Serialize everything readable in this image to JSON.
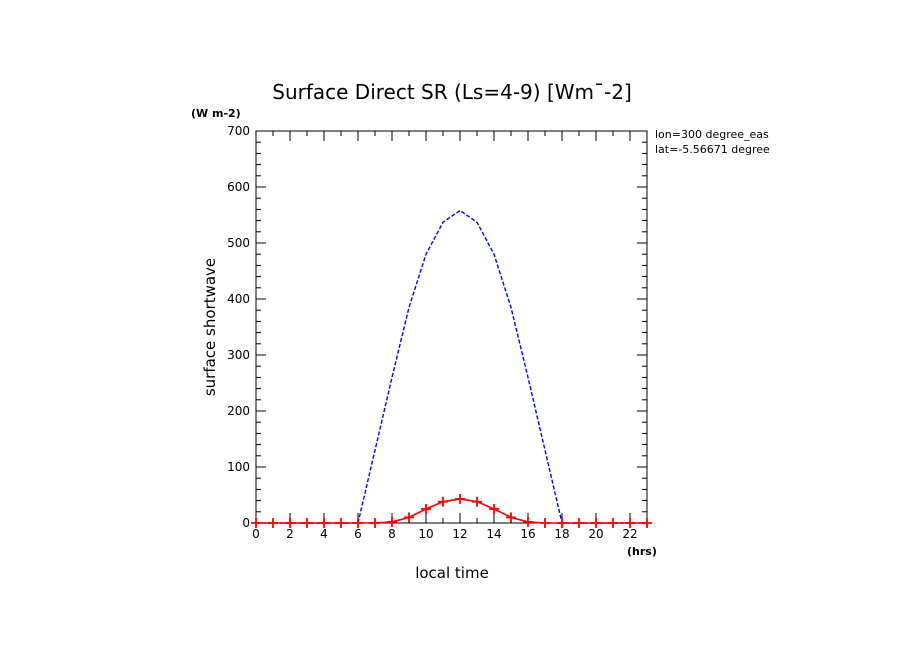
{
  "chart_data": {
    "type": "line",
    "title": "Surface Direct SR (Ls=4-9) [Wm¯-2]",
    "xlabel": "local time",
    "ylabel": "surface shortwave",
    "x_unit": "(hrs)",
    "y_unit": "(W m-2)",
    "xlim": [
      0,
      23
    ],
    "ylim": [
      0,
      700
    ],
    "x_ticks": [
      0,
      2,
      4,
      6,
      8,
      10,
      12,
      14,
      16,
      18,
      20,
      22
    ],
    "y_ticks": [
      0,
      100,
      200,
      300,
      400,
      500,
      600,
      700
    ],
    "annotations": [
      "lon=300 degree_eas",
      "lat=-5.56671 degree"
    ],
    "grid": false,
    "series": [
      {
        "color": "#0000ff",
        "line_style": "dashed",
        "markers": false,
        "x": [
          0,
          1,
          2,
          3,
          4,
          5,
          6,
          7,
          8,
          9,
          10,
          11,
          12,
          13,
          14,
          15,
          16,
          17,
          18,
          19,
          20,
          21,
          22,
          23
        ],
        "y": [
          0,
          0,
          0,
          0,
          0,
          0,
          0,
          130,
          260,
          385,
          480,
          537,
          558,
          537,
          480,
          385,
          260,
          130,
          0,
          0,
          0,
          0,
          0,
          0
        ]
      },
      {
        "color": "#ff0000",
        "line_style": "solid",
        "markers": true,
        "x": [
          0,
          1,
          2,
          3,
          4,
          5,
          6,
          7,
          8,
          9,
          10,
          11,
          12,
          13,
          14,
          15,
          16,
          17,
          18,
          19,
          20,
          21,
          22,
          23
        ],
        "y": [
          0,
          0,
          0,
          0,
          0,
          0,
          0,
          0,
          2,
          10,
          25,
          38,
          43,
          38,
          25,
          10,
          2,
          0,
          0,
          0,
          0,
          0,
          0,
          0
        ]
      }
    ]
  }
}
